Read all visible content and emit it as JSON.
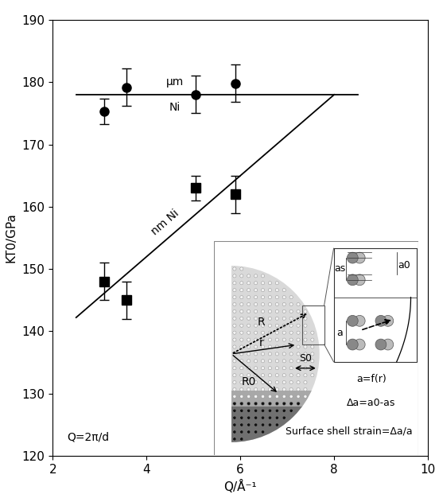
{
  "chart_data": {
    "type": "scatter",
    "xlabel": "Q/Å⁻¹",
    "ylabel": "KT0/GPa",
    "xlim": [
      2,
      10
    ],
    "ylim": [
      120,
      190
    ],
    "xticks": [
      2,
      4,
      6,
      8,
      10
    ],
    "yticks": [
      120,
      130,
      140,
      150,
      160,
      170,
      180,
      190
    ],
    "series": [
      {
        "type": "scatter",
        "marker": "circle",
        "color": "#000000",
        "x": [
          3.1,
          3.57,
          5.05,
          5.9
        ],
        "values": [
          175.3,
          179.2,
          178.0,
          179.8
        ],
        "errors": [
          2.0,
          3.0,
          3.0,
          3.0
        ]
      },
      {
        "type": "scatter",
        "marker": "square",
        "color": "#000000",
        "x": [
          3.1,
          3.57,
          5.05,
          5.9
        ],
        "values": [
          148.0,
          145.0,
          163.0,
          162.0
        ],
        "errors": [
          3.0,
          3.0,
          2.0,
          3.0
        ]
      },
      {
        "type": "line",
        "line_style": "solid",
        "color": "#000000",
        "x": [
          2.5,
          8.5
        ],
        "values": [
          178.0,
          178.0
        ]
      },
      {
        "type": "line",
        "line_style": "solid",
        "color": "#000000",
        "x": [
          2.5,
          8.0
        ],
        "values": [
          142.2,
          178.0
        ]
      }
    ],
    "annotations": [
      {
        "text": "µm",
        "x": 4.6,
        "y": 180.0
      },
      {
        "text": "Ni",
        "x": 4.6,
        "y": 176.0
      },
      {
        "text": "nm Ni",
        "x": 4.4,
        "y": 157.5
      },
      {
        "text": "Q=2π/d",
        "x": 2.3,
        "y": 123.0
      }
    ],
    "inset": {
      "R": "R",
      "r": "r",
      "R0": "R0",
      "S0": "S0",
      "as": "as",
      "a0": "a0",
      "a": "a",
      "formula": "a=f(r)",
      "delta": "Δa=a0-as",
      "strain": "Surface shell strain=Δa/a"
    }
  }
}
